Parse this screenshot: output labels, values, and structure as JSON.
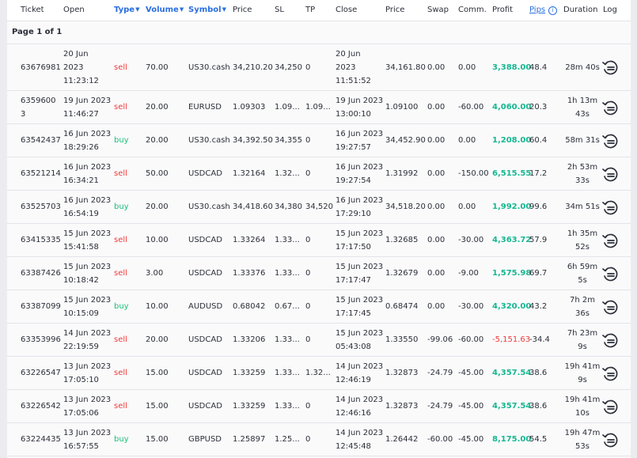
{
  "headers": {
    "ticket": "Ticket",
    "open": "Open",
    "type": "Type",
    "volume": "Volume",
    "symbol": "Symbol",
    "price": "Price",
    "sl": "SL",
    "tp": "TP",
    "close": "Close",
    "close_price": "Price",
    "swap": "Swap",
    "comm": "Comm.",
    "profit": "Profit",
    "pips": "Pips",
    "duration": "Duration",
    "log": "Log"
  },
  "pagination": {
    "label": "Page 1 of 1"
  },
  "rows": [
    {
      "ticket": "63676981",
      "open_date": "20 Jun 2023",
      "open_time": "11:23:12",
      "type": "sell",
      "volume": "70.00",
      "symbol": "US30.cash",
      "price": "34,210.20",
      "sl": "34,250",
      "tp": "0",
      "close_date": "20 Jun 2023",
      "close_time": "11:51:52",
      "close_price": "34,161.80",
      "swap": "0.00",
      "comm": "0.00",
      "profit": "3,388.00",
      "pips": "48.4",
      "duration": "28m 40s"
    },
    {
      "ticket": "63596003",
      "open_date": "19 Jun 2023",
      "open_time": "11:46:27",
      "type": "sell",
      "volume": "20.00",
      "symbol": "EURUSD",
      "price": "1.09303",
      "sl": "1.09...",
      "tp": "1.09...",
      "close_date": "19 Jun 2023",
      "close_time": "13:00:10",
      "close_price": "1.09100",
      "swap": "0.00",
      "comm": "-60.00",
      "profit": "4,060.00",
      "pips": "20.3",
      "duration": "1h 13m 43s"
    },
    {
      "ticket": "63542437",
      "open_date": "16 Jun 2023",
      "open_time": "18:29:26",
      "type": "buy",
      "volume": "20.00",
      "symbol": "US30.cash",
      "price": "34,392.50",
      "sl": "34,355",
      "tp": "0",
      "close_date": "16 Jun 2023",
      "close_time": "19:27:57",
      "close_price": "34,452.90",
      "swap": "0.00",
      "comm": "0.00",
      "profit": "1,208.00",
      "pips": "60.4",
      "duration": "58m 31s"
    },
    {
      "ticket": "63521214",
      "open_date": "16 Jun 2023",
      "open_time": "16:34:21",
      "type": "sell",
      "volume": "50.00",
      "symbol": "USDCAD",
      "price": "1.32164",
      "sl": "1.32...",
      "tp": "0",
      "close_date": "16 Jun 2023",
      "close_time": "19:27:54",
      "close_price": "1.31992",
      "swap": "0.00",
      "comm": "-150.00",
      "profit": "6,515.55",
      "pips": "17.2",
      "duration": "2h 53m 33s"
    },
    {
      "ticket": "63525703",
      "open_date": "16 Jun 2023",
      "open_time": "16:54:19",
      "type": "buy",
      "volume": "20.00",
      "symbol": "US30.cash",
      "price": "34,418.60",
      "sl": "34,380",
      "tp": "34,520",
      "close_date": "16 Jun 2023",
      "close_time": "17:29:10",
      "close_price": "34,518.20",
      "swap": "0.00",
      "comm": "0.00",
      "profit": "1,992.00",
      "pips": "99.6",
      "duration": "34m 51s"
    },
    {
      "ticket": "63415335",
      "open_date": "15 Jun 2023",
      "open_time": "15:41:58",
      "type": "sell",
      "volume": "10.00",
      "symbol": "USDCAD",
      "price": "1.33264",
      "sl": "1.33...",
      "tp": "0",
      "close_date": "15 Jun 2023",
      "close_time": "17:17:50",
      "close_price": "1.32685",
      "swap": "0.00",
      "comm": "-30.00",
      "profit": "4,363.72",
      "pips": "57.9",
      "duration": "1h 35m 52s"
    },
    {
      "ticket": "63387426",
      "open_date": "15 Jun 2023",
      "open_time": "10:18:42",
      "type": "sell",
      "volume": "3.00",
      "symbol": "USDCAD",
      "price": "1.33376",
      "sl": "1.33...",
      "tp": "0",
      "close_date": "15 Jun 2023",
      "close_time": "17:17:47",
      "close_price": "1.32679",
      "swap": "0.00",
      "comm": "-9.00",
      "profit": "1,575.98",
      "pips": "69.7",
      "duration": "6h 59m 5s"
    },
    {
      "ticket": "63387099",
      "open_date": "15 Jun 2023",
      "open_time": "10:15:09",
      "type": "buy",
      "volume": "10.00",
      "symbol": "AUDUSD",
      "price": "0.68042",
      "sl": "0.67...",
      "tp": "0",
      "close_date": "15 Jun 2023",
      "close_time": "17:17:45",
      "close_price": "0.68474",
      "swap": "0.00",
      "comm": "-30.00",
      "profit": "4,320.00",
      "pips": "43.2",
      "duration": "7h 2m 36s"
    },
    {
      "ticket": "63353996",
      "open_date": "14 Jun 2023",
      "open_time": "22:19:59",
      "type": "sell",
      "volume": "20.00",
      "symbol": "USDCAD",
      "price": "1.33206",
      "sl": "1.33...",
      "tp": "0",
      "close_date": "15 Jun 2023",
      "close_time": "05:43:08",
      "close_price": "1.33550",
      "swap": "-99.06",
      "comm": "-60.00",
      "profit": "-5,151.63",
      "pips": "-34.4",
      "duration": "7h 23m 9s"
    },
    {
      "ticket": "63226547",
      "open_date": "13 Jun 2023",
      "open_time": "17:05:10",
      "type": "sell",
      "volume": "15.00",
      "symbol": "USDCAD",
      "price": "1.33259",
      "sl": "1.33...",
      "tp": "1.32...",
      "close_date": "14 Jun 2023",
      "close_time": "12:46:19",
      "close_price": "1.32873",
      "swap": "-24.79",
      "comm": "-45.00",
      "profit": "4,357.54",
      "pips": "38.6",
      "duration": "19h 41m 9s"
    },
    {
      "ticket": "63226542",
      "open_date": "13 Jun 2023",
      "open_time": "17:05:06",
      "type": "sell",
      "volume": "15.00",
      "symbol": "USDCAD",
      "price": "1.33259",
      "sl": "1.33...",
      "tp": "0",
      "close_date": "14 Jun 2023",
      "close_time": "12:46:16",
      "close_price": "1.32873",
      "swap": "-24.79",
      "comm": "-45.00",
      "profit": "4,357.54",
      "pips": "38.6",
      "duration": "19h 41m 10s"
    },
    {
      "ticket": "63224435",
      "open_date": "13 Jun 2023",
      "open_time": "16:57:55",
      "type": "buy",
      "volume": "15.00",
      "symbol": "GBPUSD",
      "price": "1.25897",
      "sl": "1.25...",
      "tp": "0",
      "close_date": "14 Jun 2023",
      "close_time": "12:45:48",
      "close_price": "1.26442",
      "swap": "-60.00",
      "comm": "-45.00",
      "profit": "8,175.00",
      "pips": "54.5",
      "duration": "19h 47m 53s"
    }
  ]
}
